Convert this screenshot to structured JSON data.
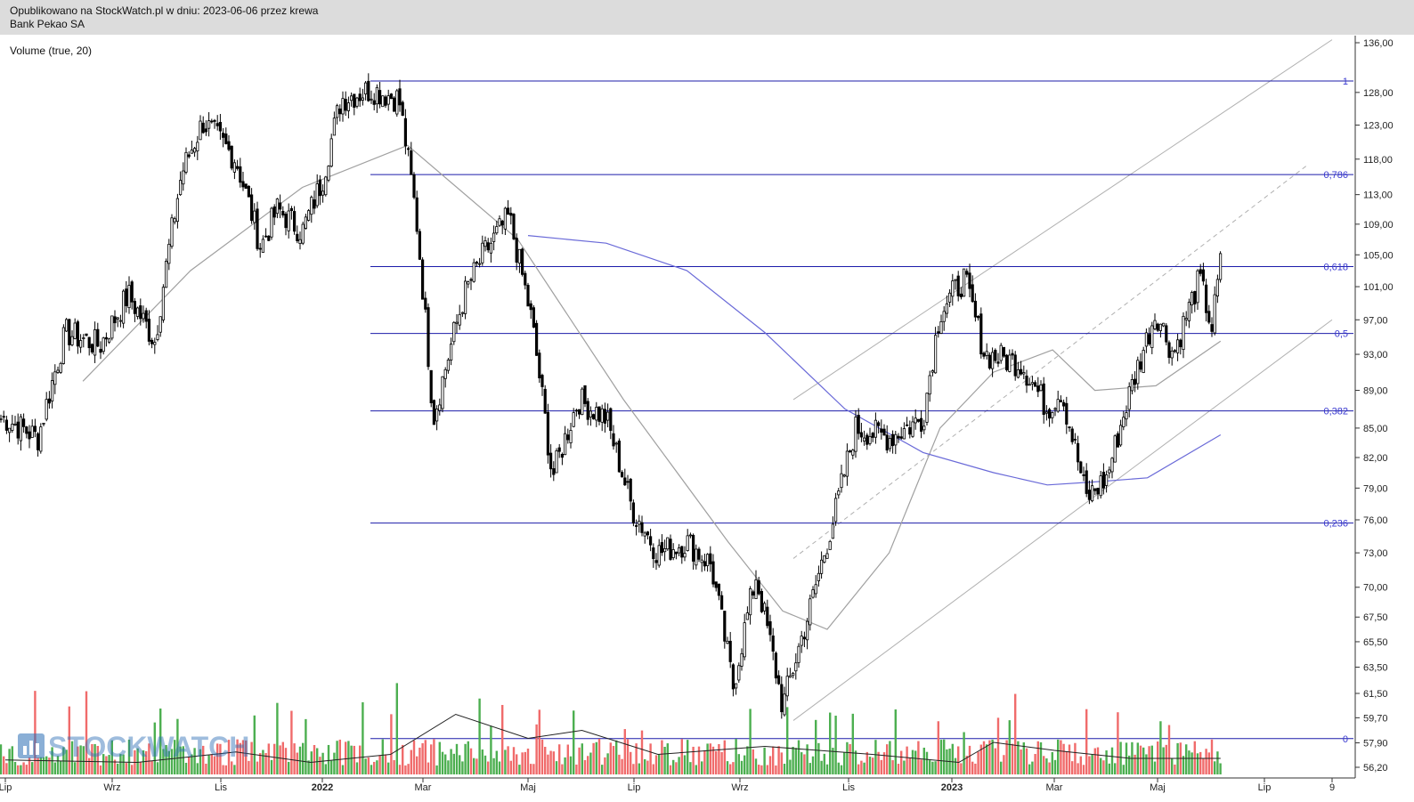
{
  "header": {
    "published": "Opublikowano na StockWatch.pl w dniu: 2023-06-06 przez krewa",
    "instrument": "Bank Pekao SA"
  },
  "indicator_label": "Volume (true, 20)",
  "watermark": "STOCKWATCH",
  "colors": {
    "candle": "#000000",
    "fib_line": "#1c1caa",
    "fib_label": "#3a3ad0",
    "ma_short": "#a0a0a0",
    "ma_long": "#6a6ad8",
    "vol_up": "#4caf50",
    "vol_down": "#f06b6b",
    "trendline": "#b0b0b0"
  },
  "chart_data": {
    "type": "candlestick",
    "title": "",
    "y_axis": {
      "scale": "log",
      "ticks": [
        "136,00",
        "128,00",
        "123,00",
        "118,00",
        "113,00",
        "109,00",
        "105,00",
        "101,00",
        "97,00",
        "93,00",
        "89,00",
        "85,00",
        "82,00",
        "79,00",
        "76,00",
        "73,00",
        "70,00",
        "67,50",
        "65,50",
        "63,50",
        "61,50",
        "59,70",
        "57,90",
        "56,20"
      ],
      "tick_values": [
        136,
        128,
        123,
        118,
        113,
        109,
        105,
        101,
        97,
        93,
        89,
        85,
        82,
        79,
        76,
        73,
        70,
        67.5,
        65.5,
        63.5,
        61.5,
        59.7,
        57.9,
        56.2
      ]
    },
    "x_axis": {
      "tick_labels": [
        "Lip",
        "Wrz",
        "Lis",
        "2022",
        "Mar",
        "Maj",
        "Lip",
        "Wrz",
        "Lis",
        "2023",
        "Mar",
        "Maj",
        "Lip",
        "9"
      ],
      "tick_dates": [
        "2021-07-01",
        "2021-09-01",
        "2021-11-01",
        "2022-01-01",
        "2022-03-01",
        "2022-05-01",
        "2022-07-01",
        "2022-09-01",
        "2022-11-01",
        "2023-01-01",
        "2023-03-01",
        "2023-05-01",
        "2023-07-01",
        "2023-08-09"
      ]
    },
    "price_path": [
      {
        "date": "2021-07-01",
        "close": 86.0
      },
      {
        "date": "2021-07-20",
        "close": 84.0
      },
      {
        "date": "2021-08-05",
        "close": 95.5
      },
      {
        "date": "2021-08-25",
        "close": 94.0
      },
      {
        "date": "2021-09-10",
        "close": 100.0
      },
      {
        "date": "2021-09-25",
        "close": 94.5
      },
      {
        "date": "2021-10-10",
        "close": 116.0
      },
      {
        "date": "2021-10-22",
        "close": 123.5
      },
      {
        "date": "2021-11-10",
        "close": 118.0
      },
      {
        "date": "2021-11-25",
        "close": 106.0
      },
      {
        "date": "2021-12-05",
        "close": 111.0
      },
      {
        "date": "2021-12-20",
        "close": 108.0
      },
      {
        "date": "2022-01-01",
        "close": 115.0
      },
      {
        "date": "2022-01-12",
        "close": 127.0
      },
      {
        "date": "2022-01-30",
        "close": 128.5
      },
      {
        "date": "2022-02-15",
        "close": 127.0
      },
      {
        "date": "2022-02-25",
        "close": 110.0
      },
      {
        "date": "2022-03-07",
        "close": 86.0
      },
      {
        "date": "2022-03-25",
        "close": 100.0
      },
      {
        "date": "2022-04-05",
        "close": 105.0
      },
      {
        "date": "2022-04-20",
        "close": 110.0
      },
      {
        "date": "2022-05-03",
        "close": 97.0
      },
      {
        "date": "2022-05-15",
        "close": 80.0
      },
      {
        "date": "2022-05-30",
        "close": 88.0
      },
      {
        "date": "2022-06-15",
        "close": 86.0
      },
      {
        "date": "2022-06-30",
        "close": 77.0
      },
      {
        "date": "2022-07-15",
        "close": 73.0
      },
      {
        "date": "2022-08-01",
        "close": 74.0
      },
      {
        "date": "2022-08-15",
        "close": 72.0
      },
      {
        "date": "2022-08-28",
        "close": 62.0
      },
      {
        "date": "2022-09-10",
        "close": 71.0
      },
      {
        "date": "2022-09-25",
        "close": 60.5
      },
      {
        "date": "2022-10-10",
        "close": 68.0
      },
      {
        "date": "2022-10-25",
        "close": 77.0
      },
      {
        "date": "2022-11-05",
        "close": 85.0
      },
      {
        "date": "2022-11-25",
        "close": 84.0
      },
      {
        "date": "2022-12-15",
        "close": 86.0
      },
      {
        "date": "2022-12-25",
        "close": 98.0
      },
      {
        "date": "2023-01-08",
        "close": 102.0
      },
      {
        "date": "2023-01-20",
        "close": 93.0
      },
      {
        "date": "2023-02-10",
        "close": 92.0
      },
      {
        "date": "2023-02-25",
        "close": 87.0
      },
      {
        "date": "2023-03-05",
        "close": 89.0
      },
      {
        "date": "2023-03-20",
        "close": 78.0
      },
      {
        "date": "2023-04-01",
        "close": 80.0
      },
      {
        "date": "2023-04-15",
        "close": 89.0
      },
      {
        "date": "2023-04-30",
        "close": 98.0
      },
      {
        "date": "2023-05-10",
        "close": 93.0
      },
      {
        "date": "2023-05-25",
        "close": 102.0
      },
      {
        "date": "2023-06-01",
        "close": 96.0
      },
      {
        "date": "2023-06-06",
        "close": 104.0
      }
    ],
    "ma_short": [
      {
        "date": "2021-08-15",
        "value": 90.0
      },
      {
        "date": "2021-10-15",
        "value": 103.0
      },
      {
        "date": "2021-12-20",
        "value": 114.0
      },
      {
        "date": "2022-02-20",
        "value": 120.0
      },
      {
        "date": "2022-04-25",
        "value": 107.0
      },
      {
        "date": "2022-06-25",
        "value": 88.0
      },
      {
        "date": "2022-08-25",
        "value": 74.0
      },
      {
        "date": "2022-09-25",
        "value": 68.0
      },
      {
        "date": "2022-10-20",
        "value": 66.5
      },
      {
        "date": "2022-11-25",
        "value": 73.0
      },
      {
        "date": "2022-12-25",
        "value": 85.0
      },
      {
        "date": "2023-01-25",
        "value": 91.0
      },
      {
        "date": "2023-02-28",
        "value": 93.5
      },
      {
        "date": "2023-03-25",
        "value": 89.0
      },
      {
        "date": "2023-04-30",
        "value": 89.5
      },
      {
        "date": "2023-06-06",
        "value": 94.5
      }
    ],
    "ma_long": [
      {
        "date": "2022-05-01",
        "value": 107.5
      },
      {
        "date": "2022-06-15",
        "value": 106.5
      },
      {
        "date": "2022-08-01",
        "value": 103.0
      },
      {
        "date": "2022-09-15",
        "value": 95.5
      },
      {
        "date": "2022-10-30",
        "value": 87.0
      },
      {
        "date": "2022-12-15",
        "value": 82.5
      },
      {
        "date": "2023-01-25",
        "value": 80.5
      },
      {
        "date": "2023-02-25",
        "value": 79.3
      },
      {
        "date": "2023-03-25",
        "value": 79.6
      },
      {
        "date": "2023-04-25",
        "value": 80.0
      },
      {
        "date": "2023-06-06",
        "value": 84.3
      }
    ],
    "fibonacci": [
      {
        "label": "1",
        "value": 129.8
      },
      {
        "label": "0,786",
        "value": 115.8
      },
      {
        "label": "0,618",
        "value": 103.5
      },
      {
        "label": "0,5",
        "value": 95.4
      },
      {
        "label": "0,382",
        "value": 86.8
      },
      {
        "label": "0,236",
        "value": 75.7
      },
      {
        "label": "0",
        "value": 58.2
      }
    ],
    "volume": {
      "ma_line": [
        {
          "date": "2021-07-01",
          "value": 0.18
        },
        {
          "date": "2021-09-15",
          "value": 0.15
        },
        {
          "date": "2021-11-10",
          "value": 0.28
        },
        {
          "date": "2021-12-25",
          "value": 0.15
        },
        {
          "date": "2022-02-10",
          "value": 0.25
        },
        {
          "date": "2022-03-20",
          "value": 0.75
        },
        {
          "date": "2022-05-01",
          "value": 0.45
        },
        {
          "date": "2022-06-01",
          "value": 0.55
        },
        {
          "date": "2022-07-15",
          "value": 0.25
        },
        {
          "date": "2022-09-15",
          "value": 0.35
        },
        {
          "date": "2022-11-15",
          "value": 0.25
        },
        {
          "date": "2023-01-05",
          "value": 0.15
        },
        {
          "date": "2023-01-25",
          "value": 0.4
        },
        {
          "date": "2023-03-01",
          "value": 0.3
        },
        {
          "date": "2023-04-15",
          "value": 0.2
        },
        {
          "date": "2023-06-06",
          "value": 0.2
        }
      ]
    },
    "trendlines": [
      {
        "style": "solid",
        "from": {
          "date": "2022-10-01",
          "value": 88.0
        },
        "to": {
          "date": "2023-08-09",
          "value": 136.5
        }
      },
      {
        "style": "dashed",
        "from": {
          "date": "2022-10-01",
          "value": 72.5
        },
        "to": {
          "date": "2023-07-25",
          "value": 117.0
        }
      },
      {
        "style": "solid",
        "from": {
          "date": "2022-10-01",
          "value": 59.5
        },
        "to": {
          "date": "2023-08-09",
          "value": 97.0
        }
      }
    ],
    "legend": "none",
    "grid": false
  }
}
